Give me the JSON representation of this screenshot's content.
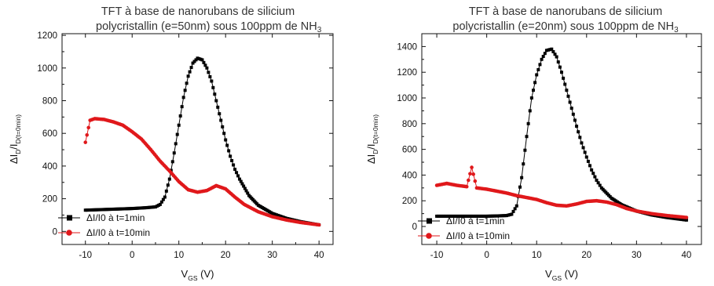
{
  "chart_data": [
    {
      "type": "scatter",
      "title_line1": "TFT à base de nanorubans de silicium",
      "title_line2": "polycristallin (e=50nm) sous 100ppm de NH",
      "title_sub": "3",
      "xlabel_main": "V",
      "xlabel_sub": "GS",
      "xlabel_unit": " (V)",
      "ylabel_main": "ΔI",
      "ylabel_sub1": "D",
      "ylabel_mid": "/I",
      "ylabel_sub2": "D(t=0min)",
      "xlim": [
        -15,
        43
      ],
      "ylim": [
        -80,
        1210
      ],
      "xticks": [
        -10,
        0,
        10,
        20,
        30,
        40
      ],
      "yticks": [
        0,
        200,
        400,
        600,
        800,
        1000,
        1200
      ],
      "grid": false,
      "legend_position": "bottom-left",
      "series": [
        {
          "name": "ΔI/I0 à t=1min",
          "color": "#000000",
          "marker": "square",
          "x": [
            -10,
            -5,
            0,
            3,
            5,
            6,
            7,
            8,
            9,
            10,
            11,
            12,
            13,
            14,
            15,
            16,
            17,
            18,
            19,
            20,
            21,
            22,
            23,
            25,
            27,
            30,
            33,
            36,
            40
          ],
          "y": [
            130,
            135,
            140,
            145,
            150,
            165,
            210,
            320,
            480,
            650,
            820,
            950,
            1030,
            1060,
            1050,
            1000,
            920,
            800,
            680,
            560,
            460,
            380,
            320,
            220,
            160,
            110,
            80,
            60,
            40
          ]
        },
        {
          "name": "ΔI/I0 à t=10min",
          "color": "#e0181b",
          "marker": "circle",
          "x": [
            -10,
            -9,
            -8,
            -6,
            -4,
            -2,
            0,
            2,
            4,
            6,
            8,
            10,
            12,
            14,
            16,
            18,
            20,
            22,
            24,
            27,
            30,
            33,
            36,
            40
          ],
          "y": [
            545,
            680,
            690,
            685,
            670,
            650,
            610,
            565,
            500,
            430,
            370,
            305,
            255,
            240,
            250,
            280,
            260,
            210,
            165,
            120,
            90,
            70,
            55,
            40
          ]
        }
      ]
    },
    {
      "type": "scatter",
      "title_line1": "TFT à base de nanorubans de silicium",
      "title_line2": "polycristallin (e=20nm) sous 100ppm de NH",
      "title_sub": "3",
      "xlabel_main": "V",
      "xlabel_sub": "GS",
      "xlabel_unit": " (V)",
      "ylabel_main": "ΔI",
      "ylabel_sub1": "D",
      "ylabel_mid": "/I",
      "ylabel_sub2": "D(t=0min)",
      "xlim": [
        -13,
        43
      ],
      "ylim": [
        -140,
        1500
      ],
      "xticks": [
        -10,
        0,
        10,
        20,
        30,
        40
      ],
      "yticks": [
        0,
        200,
        400,
        600,
        800,
        1000,
        1200,
        1400
      ],
      "grid": false,
      "legend_position": "bottom-left",
      "series": [
        {
          "name": "ΔI/I0 à t=1min",
          "color": "#000000",
          "marker": "square",
          "x": [
            -10,
            -5,
            0,
            2,
            4,
            5,
            6,
            7,
            8,
            9,
            10,
            11,
            12,
            13,
            14,
            15,
            16,
            17,
            18,
            19,
            20,
            21,
            22,
            23,
            25,
            27,
            30,
            33,
            36,
            40
          ],
          "y": [
            80,
            80,
            80,
            82,
            85,
            95,
            160,
            380,
            700,
            1000,
            1180,
            1300,
            1370,
            1380,
            1320,
            1200,
            1060,
            920,
            780,
            650,
            540,
            440,
            360,
            300,
            220,
            170,
            120,
            90,
            70,
            50
          ]
        },
        {
          "name": "ΔI/I0 à t=10min",
          "color": "#e0181b",
          "marker": "circle",
          "x": [
            -10,
            -8,
            -6,
            -4,
            -3,
            -2,
            0,
            2,
            4,
            6,
            8,
            10,
            12,
            14,
            16,
            18,
            20,
            22,
            24,
            26,
            28,
            30,
            33,
            36,
            40
          ],
          "y": [
            320,
            335,
            320,
            310,
            460,
            300,
            290,
            275,
            260,
            240,
            225,
            210,
            185,
            165,
            160,
            175,
            195,
            200,
            190,
            170,
            140,
            120,
            100,
            85,
            70
          ]
        }
      ]
    }
  ]
}
